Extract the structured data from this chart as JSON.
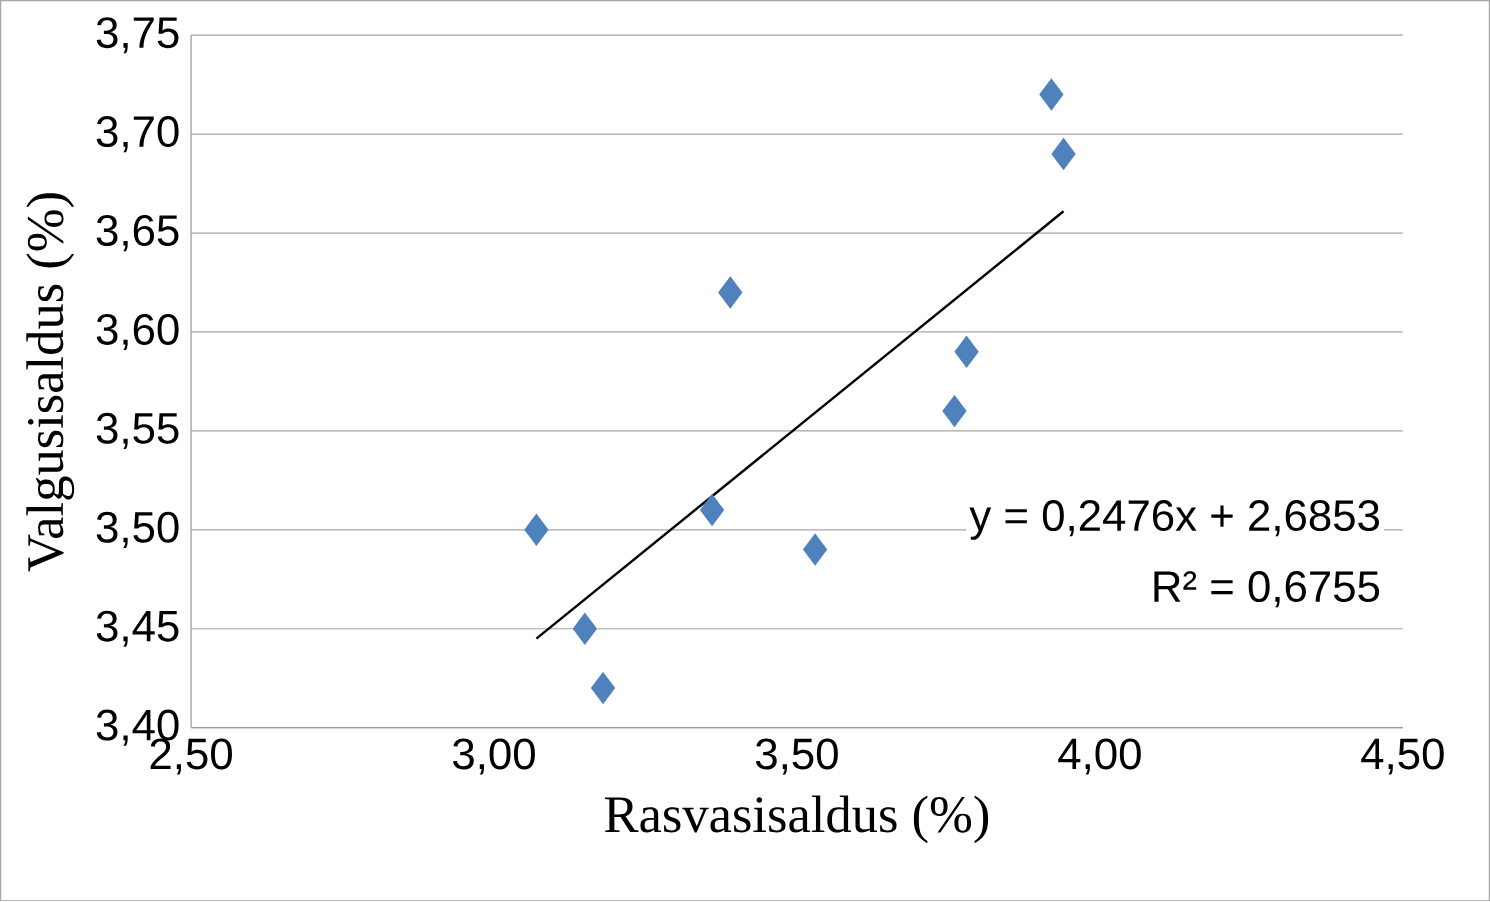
{
  "chart_data": {
    "type": "scatter",
    "xlabel": "Rasvasisaldus (%)",
    "ylabel": "Valgusisaldus (%)",
    "xlim": [
      2.5,
      4.5
    ],
    "ylim": [
      3.4,
      3.75
    ],
    "xticks": [
      {
        "value": 2.5,
        "label": "2,50"
      },
      {
        "value": 3.0,
        "label": "3,00"
      },
      {
        "value": 3.5,
        "label": "3,50"
      },
      {
        "value": 4.0,
        "label": "4,00"
      },
      {
        "value": 4.5,
        "label": "4,50"
      }
    ],
    "yticks": [
      {
        "value": 3.4,
        "label": "3,40"
      },
      {
        "value": 3.45,
        "label": "3,45"
      },
      {
        "value": 3.5,
        "label": "3,50"
      },
      {
        "value": 3.55,
        "label": "3,55"
      },
      {
        "value": 3.6,
        "label": "3,60"
      },
      {
        "value": 3.65,
        "label": "3,65"
      },
      {
        "value": 3.7,
        "label": "3,70"
      },
      {
        "value": 3.75,
        "label": "3,75"
      }
    ],
    "grid": "y",
    "marker": "diamond",
    "series": [
      {
        "color": "#4f81bd",
        "x": [
          3.07,
          3.15,
          3.18,
          3.36,
          3.39,
          3.53,
          3.76,
          3.78,
          3.92,
          3.94
        ],
        "values": [
          3.5,
          3.45,
          3.42,
          3.51,
          3.62,
          3.49,
          3.56,
          3.59,
          3.72,
          3.69
        ]
      },
      {
        "type": "line",
        "color": "#000000",
        "marker": "none",
        "x": [
          3.07,
          3.94
        ],
        "values": [
          3.445,
          3.661
        ]
      }
    ],
    "annotations": [
      "y = 0,2476x + 2,6853",
      "R² = 0,6755"
    ]
  }
}
